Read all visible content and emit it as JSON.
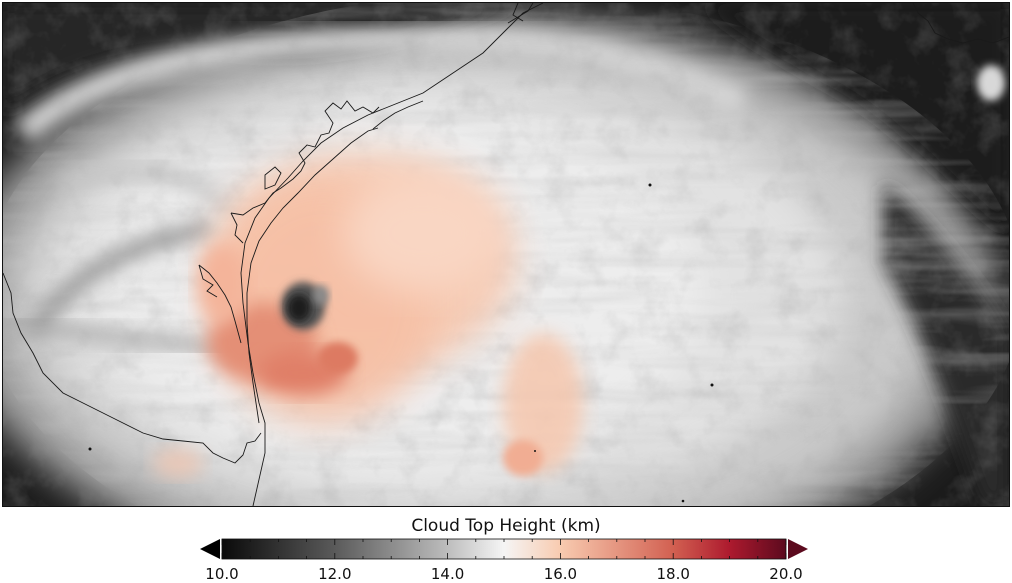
{
  "colorbar": {
    "title": "Cloud Top Height (km)",
    "min": 10.0,
    "max": 20.0,
    "extend": "both",
    "ticks": [
      {
        "value": 10.0,
        "label": "10.0"
      },
      {
        "value": 12.0,
        "label": "12.0"
      },
      {
        "value": 14.0,
        "label": "14.0"
      },
      {
        "value": 16.0,
        "label": "16.0"
      },
      {
        "value": 18.0,
        "label": "18.0"
      },
      {
        "value": 20.0,
        "label": "20.0"
      }
    ],
    "minor_tick_step": 0.5,
    "colormap": [
      {
        "value": 10.0,
        "color": "#0a0a0a"
      },
      {
        "value": 12.0,
        "color": "#5a5a5a"
      },
      {
        "value": 14.0,
        "color": "#bdbdbd"
      },
      {
        "value": 15.0,
        "color": "#f5f5f5"
      },
      {
        "value": 16.0,
        "color": "#f8cbb0"
      },
      {
        "value": 18.0,
        "color": "#d26051"
      },
      {
        "value": 19.0,
        "color": "#ad1a2e"
      },
      {
        "value": 20.0,
        "color": "#5c0a1e"
      }
    ],
    "under_color": "#000000",
    "over_color": "#5c0a1e"
  },
  "map": {
    "subject": "Hurricane cloud top height over Gulf coast",
    "background_color": "#1b1b1b",
    "coastline_color": "#1a1a1a"
  }
}
